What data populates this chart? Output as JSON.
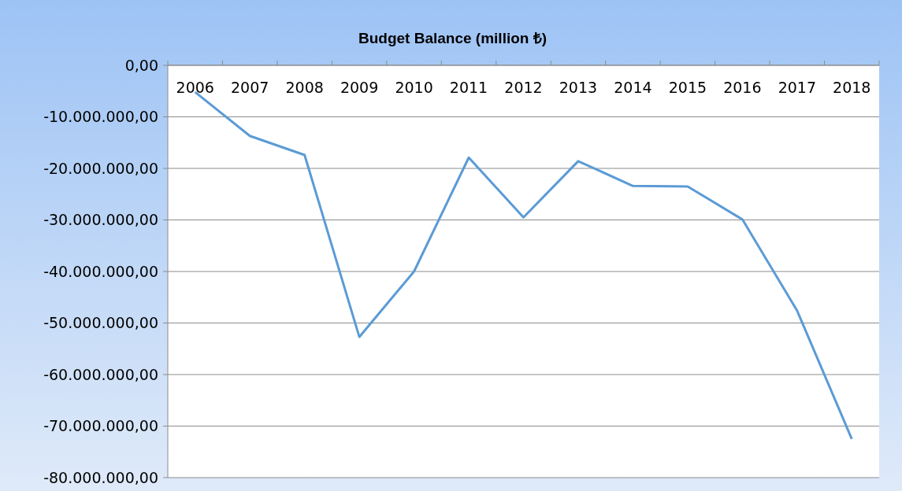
{
  "chart_data": {
    "type": "line",
    "title": "Budget Balance (million ₺)",
    "categories": [
      "2006",
      "2007",
      "2008",
      "2009",
      "2010",
      "2011",
      "2012",
      "2013",
      "2014",
      "2015",
      "2016",
      "2017",
      "2018"
    ],
    "series": [
      {
        "color": "#5b9bd5",
        "values": [
          -5200000,
          -13700000,
          -17400000,
          -52700000,
          -40000000,
          -17900000,
          -29500000,
          -18600000,
          -23400000,
          -23500000,
          -29900000,
          -47600000,
          -72500000
        ]
      }
    ],
    "ylim": [
      -80000000,
      0
    ],
    "yticks": [
      {
        "value": 0,
        "label": "0,00"
      },
      {
        "value": -10000000,
        "label": "-10.000.000,00"
      },
      {
        "value": -20000000,
        "label": "-20.000.000,00"
      },
      {
        "value": -30000000,
        "label": "-30.000.000,00"
      },
      {
        "value": -40000000,
        "label": "-40.000.000,00"
      },
      {
        "value": -50000000,
        "label": "-50.000.000,00"
      },
      {
        "value": -60000000,
        "label": "-60.000.000,00"
      },
      {
        "value": -70000000,
        "label": "-70.000.000,00"
      },
      {
        "value": -80000000,
        "label": "-80.000.000,00"
      }
    ],
    "grid": "y",
    "marker": "none",
    "line_style": "solid"
  }
}
